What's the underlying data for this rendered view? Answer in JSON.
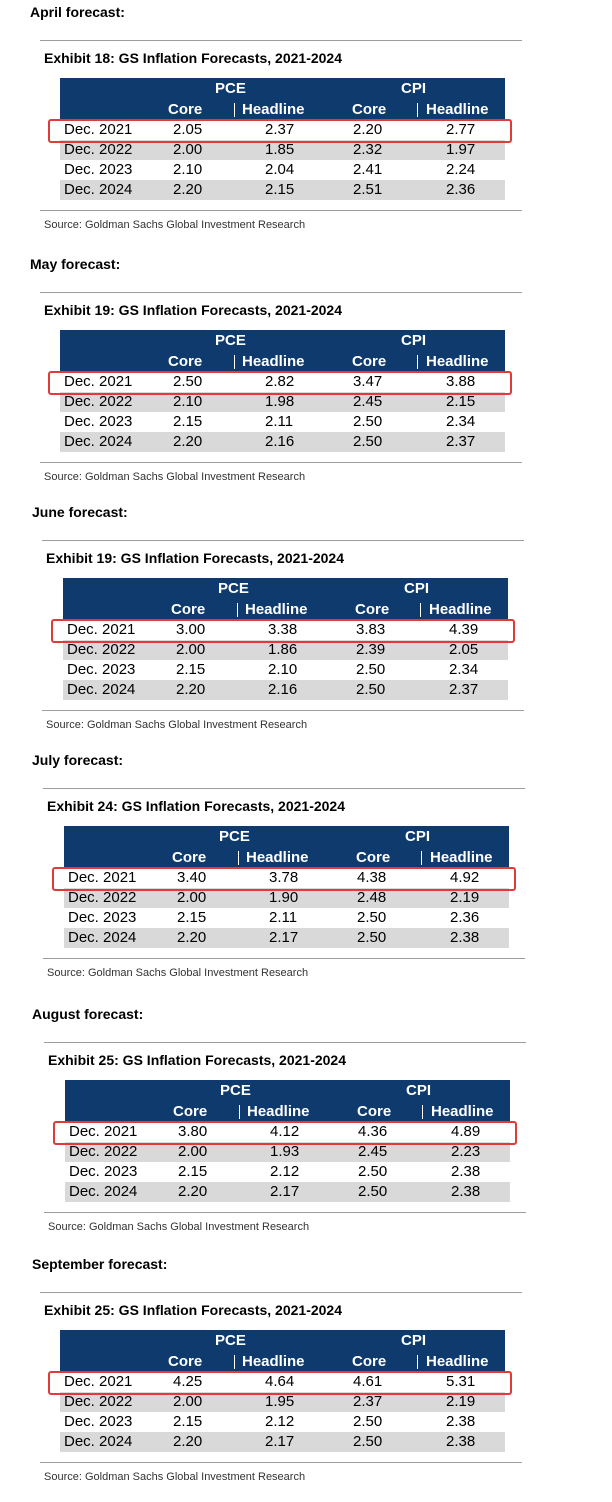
{
  "sections": [
    {
      "month": "April forecast:",
      "exhibit": "Exhibit 18: GS Inflation Forecasts, 2021-2024",
      "rows": [
        [
          "Dec. 2021",
          "2.05",
          "2.37",
          "2.20",
          "2.77"
        ],
        [
          "Dec. 2022",
          "2.00",
          "1.85",
          "2.32",
          "1.97"
        ],
        [
          "Dec. 2023",
          "2.10",
          "2.04",
          "2.41",
          "2.24"
        ],
        [
          "Dec. 2024",
          "2.20",
          "2.15",
          "2.51",
          "2.36"
        ]
      ]
    },
    {
      "month": "May forecast:",
      "exhibit": "Exhibit 19: GS Inflation Forecasts, 2021-2024",
      "rows": [
        [
          "Dec. 2021",
          "2.50",
          "2.82",
          "3.47",
          "3.88"
        ],
        [
          "Dec. 2022",
          "2.10",
          "1.98",
          "2.45",
          "2.15"
        ],
        [
          "Dec. 2023",
          "2.15",
          "2.11",
          "2.50",
          "2.34"
        ],
        [
          "Dec. 2024",
          "2.20",
          "2.16",
          "2.50",
          "2.37"
        ]
      ]
    },
    {
      "month": "June forecast:",
      "exhibit": "Exhibit 19: GS Inflation Forecasts, 2021-2024",
      "rows": [
        [
          "Dec. 2021",
          "3.00",
          "3.38",
          "3.83",
          "4.39"
        ],
        [
          "Dec. 2022",
          "2.00",
          "1.86",
          "2.39",
          "2.05"
        ],
        [
          "Dec. 2023",
          "2.15",
          "2.10",
          "2.50",
          "2.34"
        ],
        [
          "Dec. 2024",
          "2.20",
          "2.16",
          "2.50",
          "2.37"
        ]
      ]
    },
    {
      "month": "July forecast:",
      "exhibit": "Exhibit 24: GS Inflation Forecasts, 2021-2024",
      "rows": [
        [
          "Dec. 2021",
          "3.40",
          "3.78",
          "4.38",
          "4.92"
        ],
        [
          "Dec. 2022",
          "2.00",
          "1.90",
          "2.48",
          "2.19"
        ],
        [
          "Dec. 2023",
          "2.15",
          "2.11",
          "2.50",
          "2.36"
        ],
        [
          "Dec. 2024",
          "2.20",
          "2.17",
          "2.50",
          "2.38"
        ]
      ]
    },
    {
      "month": "August forecast:",
      "exhibit": "Exhibit 25: GS Inflation Forecasts, 2021-2024",
      "rows": [
        [
          "Dec. 2021",
          "3.80",
          "4.12",
          "4.36",
          "4.89"
        ],
        [
          "Dec. 2022",
          "2.00",
          "1.93",
          "2.45",
          "2.23"
        ],
        [
          "Dec. 2023",
          "2.15",
          "2.12",
          "2.50",
          "2.38"
        ],
        [
          "Dec. 2024",
          "2.20",
          "2.17",
          "2.50",
          "2.38"
        ]
      ]
    },
    {
      "month": "September forecast:",
      "exhibit": "Exhibit 25: GS Inflation Forecasts, 2021-2024",
      "rows": [
        [
          "Dec. 2021",
          "4.25",
          "4.64",
          "4.61",
          "5.31"
        ],
        [
          "Dec. 2022",
          "2.00",
          "1.95",
          "2.37",
          "2.19"
        ],
        [
          "Dec. 2023",
          "2.15",
          "2.12",
          "2.50",
          "2.38"
        ],
        [
          "Dec. 2024",
          "2.20",
          "2.17",
          "2.50",
          "2.38"
        ]
      ]
    }
  ],
  "table_headers": {
    "group1": "PCE",
    "group2": "CPI",
    "core": "Core",
    "headline": "Headline"
  },
  "source": "Source: Goldman Sachs Global Investment Research",
  "colors": {
    "header_bg": "#0f3a6e",
    "highlight": "#e03a3a",
    "shade": "#d9d9d9"
  }
}
